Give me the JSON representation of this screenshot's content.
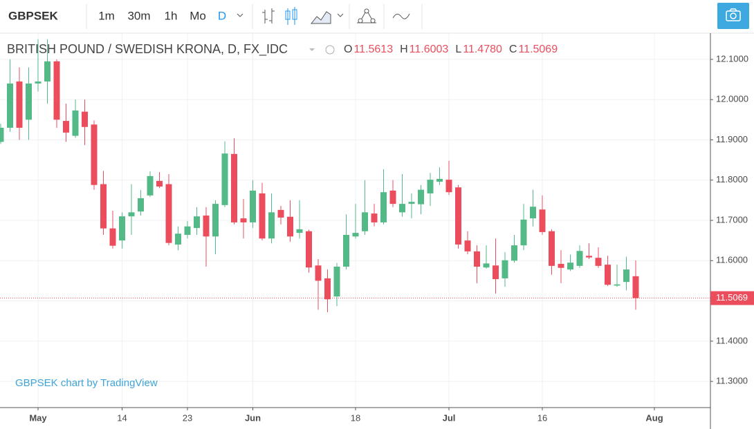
{
  "toolbar": {
    "symbol": "GBPSEK",
    "intervals": [
      "1m",
      "30m",
      "1h",
      "Mo",
      "D"
    ],
    "active_interval": 4
  },
  "chart_data": {
    "type": "candlestick",
    "title": "BRITISH POUND / SWEDISH KRONA, D, FX_IDC",
    "ohlc_legend": [
      {
        "label": "O",
        "text": "11.5613"
      },
      {
        "label": "H",
        "text": "11.6003"
      },
      {
        "label": "L",
        "text": "11.4780"
      },
      {
        "label": "C",
        "text": "11.5069"
      }
    ],
    "last_price_label": "11.5069",
    "watermark": "GBPSEK chart by TradingView",
    "up_color": "#53b987",
    "down_color": "#eb4d5c",
    "categories": [
      null,
      null,
      null,
      null,
      "May",
      null,
      null,
      null,
      null,
      null,
      null,
      null,
      null,
      "14",
      null,
      null,
      null,
      null,
      null,
      null,
      "23",
      null,
      null,
      null,
      null,
      null,
      null,
      "Jun",
      null,
      null,
      null,
      null,
      null,
      null,
      null,
      null,
      null,
      null,
      "18",
      null,
      null,
      null,
      null,
      null,
      null,
      null,
      null,
      null,
      "Jul",
      null,
      null,
      null,
      null,
      null,
      null,
      null,
      null,
      null,
      "16",
      null,
      null,
      null,
      null,
      null,
      null,
      null,
      null,
      null,
      null,
      null,
      "Aug"
    ],
    "open": [
      11.895,
      11.93,
      12.045,
      11.95,
      12.04,
      12.045,
      12.095,
      11.947,
      11.91,
      11.97,
      11.938,
      11.79,
      11.68,
      11.65,
      11.71,
      11.722,
      11.762,
      11.798,
      11.79,
      11.64,
      11.664,
      11.681,
      11.712,
      11.66,
      11.738,
      11.865,
      11.705,
      11.695,
      11.767,
      11.655,
      11.726,
      11.709,
      11.669,
      11.673,
      11.588,
      11.556,
      11.511,
      11.585,
      11.66,
      11.673,
      11.717,
      11.695,
      11.774,
      11.72,
      11.741,
      11.74,
      11.767,
      11.796,
      11.801,
      11.782,
      11.65,
      11.623,
      11.583,
      11.588,
      11.556,
      11.6,
      11.638,
      11.705,
      11.727,
      11.673,
      11.592,
      11.578,
      11.587,
      11.612,
      11.607,
      11.59,
      11.538,
      11.547,
      11.5613,
      null,
      null
    ],
    "high": [
      11.94,
      12.1,
      12.08,
      12.08,
      12.15,
      12.15,
      12.1,
      11.99,
      12.0,
      12.0,
      11.948,
      11.823,
      11.724,
      11.72,
      11.79,
      11.775,
      11.822,
      11.82,
      11.815,
      11.685,
      11.698,
      11.733,
      11.733,
      11.75,
      11.896,
      11.904,
      11.753,
      11.8,
      11.793,
      11.767,
      11.736,
      11.75,
      11.75,
      11.677,
      11.604,
      11.578,
      11.594,
      11.715,
      11.741,
      11.8,
      11.741,
      11.827,
      11.8,
      11.815,
      11.767,
      11.788,
      11.818,
      11.832,
      11.848,
      11.788,
      11.673,
      11.638,
      11.638,
      11.655,
      11.621,
      11.664,
      11.741,
      11.776,
      11.762,
      11.678,
      11.626,
      11.615,
      11.638,
      11.643,
      11.633,
      11.612,
      11.59,
      11.61,
      11.6003,
      null,
      null
    ],
    "low": [
      11.89,
      11.92,
      11.9,
      11.9,
      12.02,
      11.99,
      11.93,
      11.895,
      11.905,
      11.887,
      11.776,
      11.664,
      11.63,
      11.63,
      11.664,
      11.712,
      11.758,
      11.78,
      11.638,
      11.626,
      11.655,
      11.664,
      11.585,
      11.616,
      11.733,
      11.69,
      11.655,
      11.681,
      11.65,
      11.643,
      11.69,
      11.647,
      11.655,
      11.57,
      11.478,
      11.472,
      11.487,
      11.578,
      11.655,
      11.664,
      11.685,
      11.69,
      11.733,
      11.709,
      11.705,
      11.715,
      11.736,
      11.788,
      11.763,
      11.63,
      11.616,
      11.544,
      11.58,
      11.518,
      11.535,
      11.595,
      11.626,
      11.685,
      11.664,
      11.565,
      11.544,
      11.574,
      11.582,
      11.604,
      11.582,
      11.537,
      11.535,
      11.526,
      11.478,
      null,
      null
    ],
    "close": [
      11.93,
      12.04,
      11.93,
      12.04,
      12.045,
      12.095,
      11.95,
      11.918,
      11.973,
      11.932,
      11.788,
      11.68,
      11.637,
      11.71,
      11.72,
      11.755,
      11.81,
      11.784,
      11.644,
      11.667,
      11.685,
      11.71,
      11.66,
      11.741,
      11.866,
      11.695,
      11.695,
      11.774,
      11.655,
      11.72,
      11.707,
      11.66,
      11.678,
      11.583,
      11.55,
      11.504,
      11.585,
      11.664,
      11.669,
      11.72,
      11.695,
      11.77,
      11.741,
      11.741,
      11.746,
      11.776,
      11.801,
      11.803,
      11.77,
      11.64,
      11.623,
      11.585,
      11.593,
      11.554,
      11.601,
      11.638,
      11.702,
      11.734,
      11.671,
      11.587,
      11.582,
      11.595,
      11.624,
      11.608,
      11.587,
      11.54,
      11.541,
      11.578,
      11.5069,
      null,
      null
    ],
    "ylim": [
      11.235,
      12.165
    ],
    "yticks": [
      {
        "value": 11.3,
        "label": "11.3000"
      },
      {
        "value": 11.4,
        "label": "11.4000"
      },
      {
        "value": 11.5,
        "label": "11.5000"
      },
      {
        "value": 11.6,
        "label": "11.6000"
      },
      {
        "value": 11.7,
        "label": "11.7000"
      },
      {
        "value": 11.8,
        "label": "11.8000"
      },
      {
        "value": 11.9,
        "label": "11.9000"
      },
      {
        "value": 12.0,
        "label": "12.0000"
      },
      {
        "value": 12.1,
        "label": "12.1000"
      }
    ],
    "grid": true
  }
}
